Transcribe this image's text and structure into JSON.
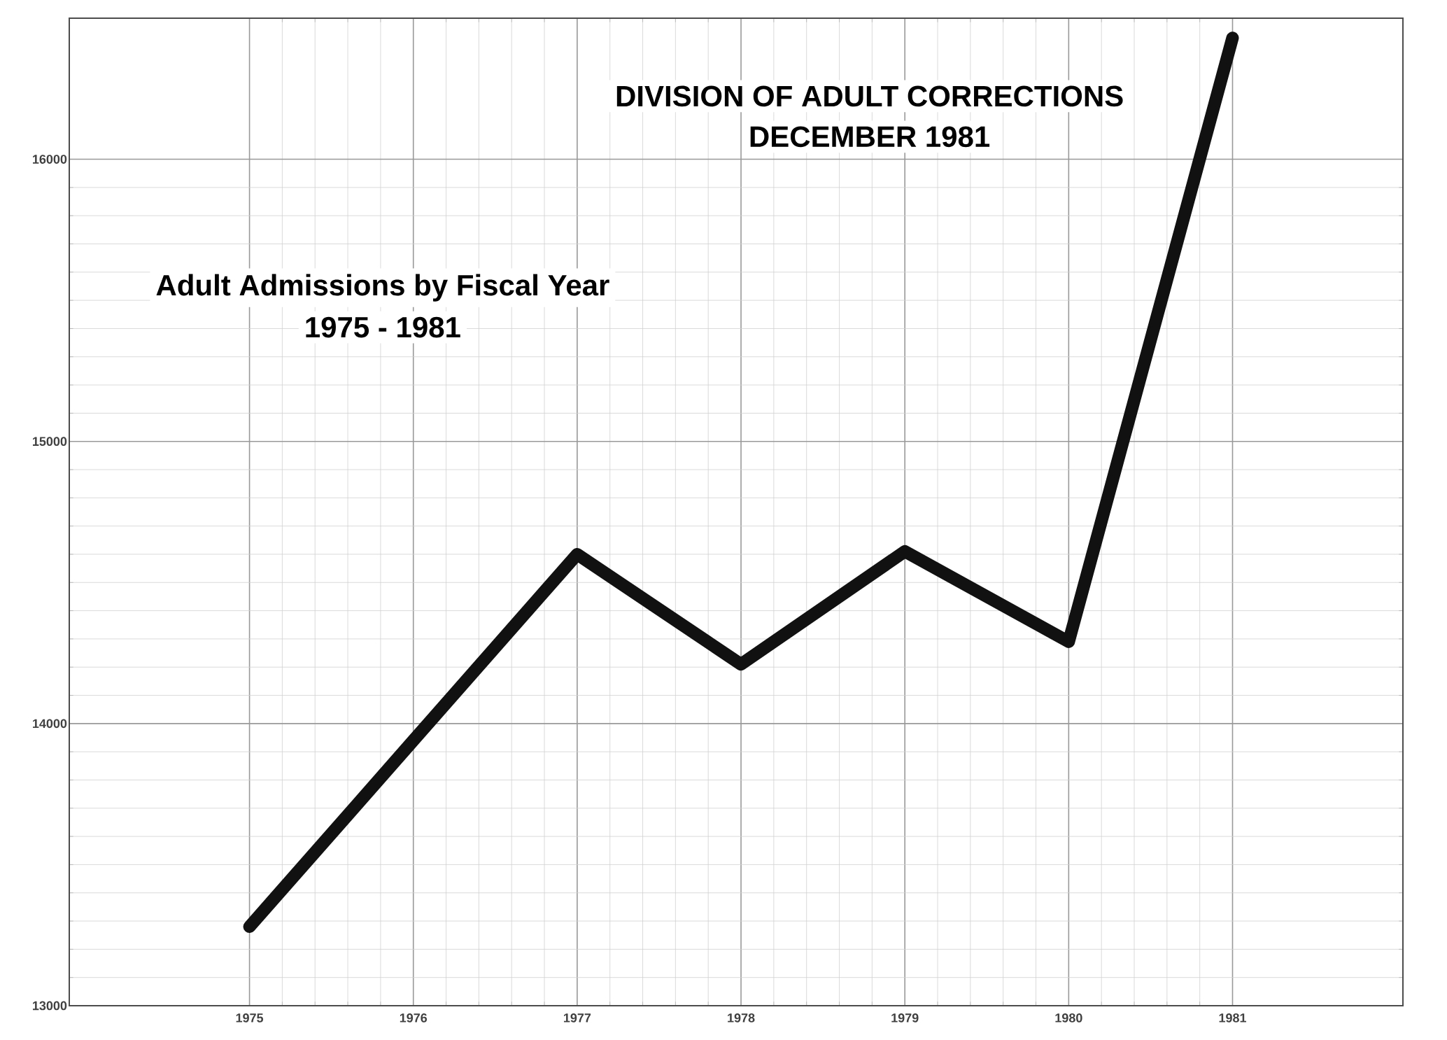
{
  "chart_data": {
    "type": "line",
    "title": "DIVISION OF ADULT CORRECTIONS",
    "subtitle": "DECEMBER 1981",
    "annotations": [
      "Adult Admissions by Fiscal Year",
      "1975 - 1981"
    ],
    "x": [
      1975,
      1976,
      1977,
      1978,
      1979,
      1980,
      1981
    ],
    "series": [
      {
        "color": "#111111",
        "values": [
          13280,
          13940,
          14600,
          14210,
          14610,
          14290,
          16430
        ]
      }
    ],
    "xlim": [
      1973.9,
      1982.04
    ],
    "xticks": [
      1975,
      1976,
      1977,
      1978,
      1979,
      1980,
      1981
    ],
    "ylim": [
      13000,
      16500
    ],
    "yticks": [
      13000,
      14000,
      15000,
      16000
    ],
    "grid": true,
    "marker": "none",
    "line_style": "solid"
  }
}
